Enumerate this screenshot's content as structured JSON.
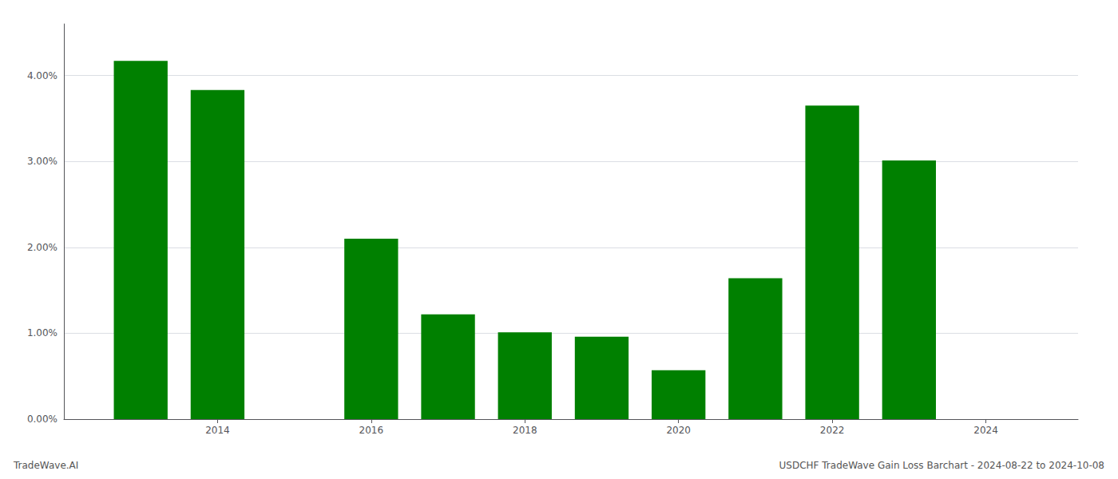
{
  "chart_data": {
    "type": "bar",
    "x": [
      2013,
      2014,
      2016,
      2017,
      2018,
      2019,
      2020,
      2021,
      2022,
      2023
    ],
    "values": [
      0.0417,
      0.0383,
      0.021,
      0.0122,
      0.0101,
      0.0096,
      0.0057,
      0.0164,
      0.0365,
      0.0301
    ],
    "color": "#008000",
    "xlim": [
      2012.0,
      2025.2
    ],
    "xticks": [
      2014,
      2016,
      2018,
      2020,
      2022,
      2024
    ],
    "ylim": [
      0,
      0.046
    ],
    "yticks": [
      {
        "value": 0.0,
        "label": "0.00%"
      },
      {
        "value": 0.01,
        "label": "1.00%"
      },
      {
        "value": 0.02,
        "label": "2.00%"
      },
      {
        "value": 0.03,
        "label": "3.00%"
      },
      {
        "value": 0.04,
        "label": "4.00%"
      }
    ],
    "grid": true,
    "annotations": [
      "TradeWave.AI",
      "USDCHF TradeWave Gain Loss Barchart - 2024-08-22 to 2024-10-08"
    ]
  }
}
